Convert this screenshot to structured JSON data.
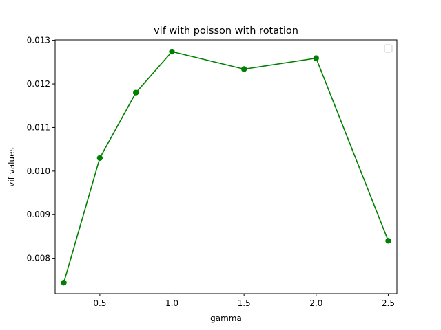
{
  "chart_data": {
    "type": "line",
    "title": "vif with poisson with rotation",
    "xlabel": "gamma",
    "ylabel": "vif values",
    "x": [
      0.25,
      0.5,
      0.75,
      1.0,
      1.5,
      2.0,
      2.5
    ],
    "series": [
      {
        "values": [
          0.00744,
          0.0103,
          0.0118,
          0.01274,
          0.01234,
          0.01259,
          0.0084
        ],
        "color": "#008000",
        "marker": "circle"
      }
    ],
    "xlim": [
      0.19,
      2.56
    ],
    "ylim": [
      0.00719,
      0.01301
    ],
    "xticks": [
      0.5,
      1.0,
      1.5,
      2.0,
      2.5
    ],
    "xtick_labels": [
      "0.5",
      "1.0",
      "1.5",
      "2.0",
      "2.5"
    ],
    "yticks": [
      0.008,
      0.009,
      0.01,
      0.011,
      0.012,
      0.013
    ],
    "ytick_labels": [
      "0.008",
      "0.009",
      "0.010",
      "0.011",
      "0.012",
      "0.013"
    ],
    "grid": false,
    "legend": {
      "placement": "top-right",
      "entries": []
    }
  }
}
